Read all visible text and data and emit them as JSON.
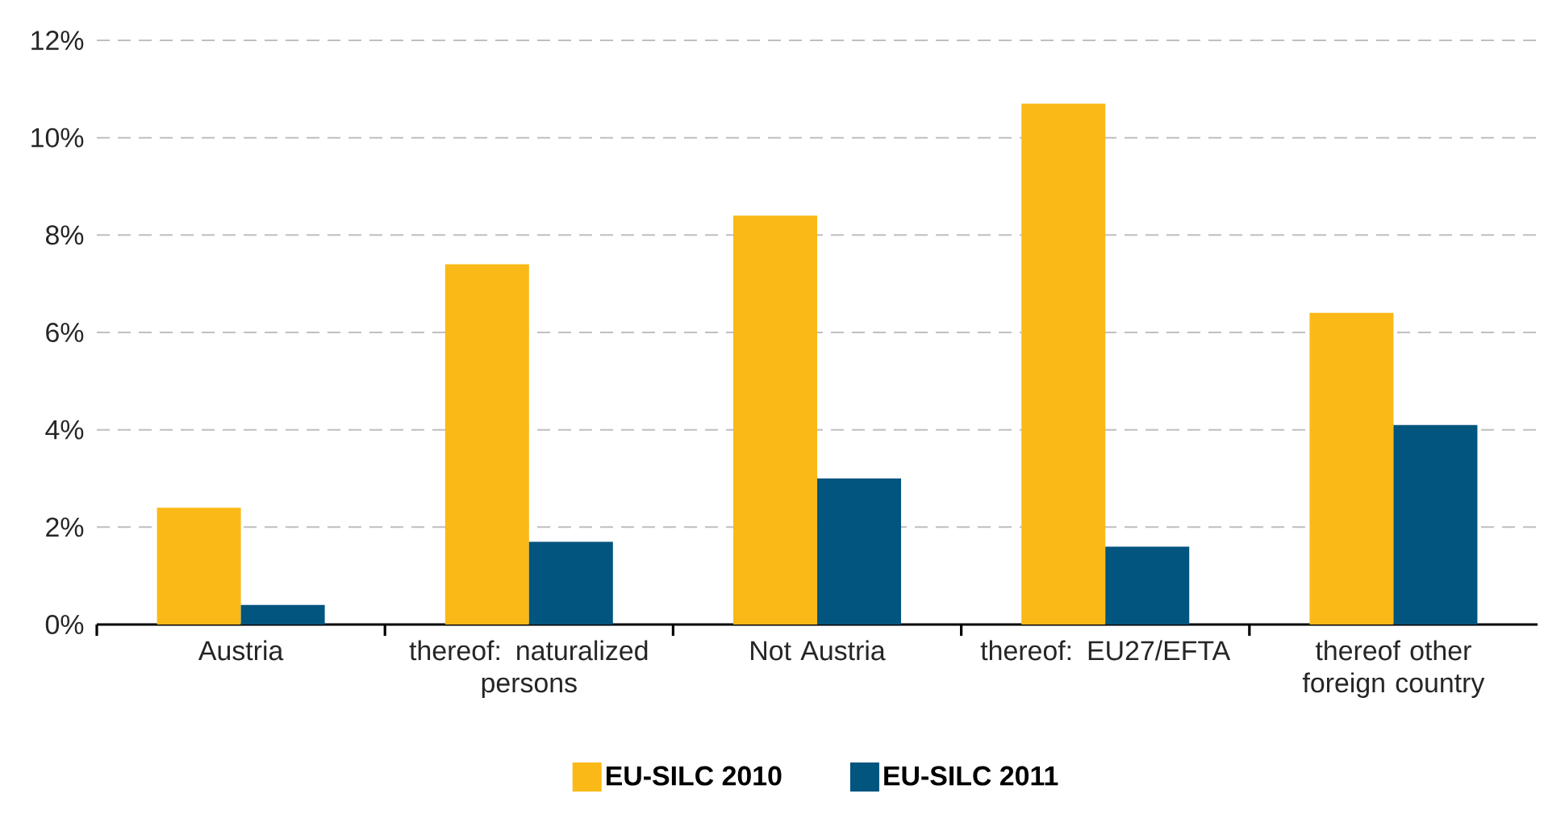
{
  "chart_data": {
    "type": "bar",
    "categories": [
      "Austria",
      "thereof: naturalized persons",
      "Not Austria",
      "thereof: EU27/EFTA",
      "thereof other foreign country"
    ],
    "series": [
      {
        "name": "EU-SILC 2010",
        "color": "#fbb917",
        "values": [
          2.4,
          7.4,
          8.4,
          10.7,
          6.4
        ]
      },
      {
        "name": "EU-SILC 2011",
        "color": "#02557f",
        "values": [
          0.4,
          1.7,
          3.0,
          1.6,
          4.1
        ]
      }
    ],
    "ylim": [
      0,
      12
    ],
    "yticks": [
      {
        "value": 0,
        "label": "0%"
      },
      {
        "value": 2,
        "label": "2%"
      },
      {
        "value": 4,
        "label": "4%"
      },
      {
        "value": 6,
        "label": "6%"
      },
      {
        "value": 8,
        "label": "8%"
      },
      {
        "value": 10,
        "label": "10%"
      },
      {
        "value": 12,
        "label": "12%"
      }
    ],
    "grid": "y",
    "legend": "bottom"
  }
}
